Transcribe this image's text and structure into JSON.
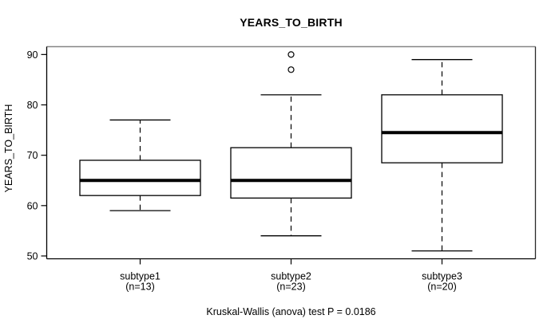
{
  "chart_data": {
    "type": "boxplot",
    "title": "YEARS_TO_BIRTH",
    "ylabel": "YEARS_TO_BIRTH",
    "annotation": "Kruskal-Wallis (anova) test P = 0.0186",
    "y_ticks": [
      50,
      60,
      70,
      80,
      90
    ],
    "ylim": [
      49.44,
      91.56
    ],
    "grid": false,
    "colors": {
      "foreground": "#000000",
      "background": "#ffffff",
      "box_fill": "#ffffff"
    },
    "groups": [
      {
        "label": "subtype1",
        "sublabel": "(n=13)",
        "n": 13,
        "whisker_low": 59,
        "q1": 62,
        "median": 65,
        "q3": 69,
        "whisker_high": 77,
        "outliers": []
      },
      {
        "label": "subtype2",
        "sublabel": "(n=23)",
        "n": 23,
        "whisker_low": 54,
        "q1": 61.5,
        "median": 65,
        "q3": 71.5,
        "whisker_high": 82,
        "outliers": [
          87,
          90
        ]
      },
      {
        "label": "subtype3",
        "sublabel": "(n=20)",
        "n": 20,
        "whisker_low": 51,
        "q1": 68.5,
        "median": 74.5,
        "q3": 82,
        "whisker_high": 89,
        "outliers": []
      }
    ]
  }
}
